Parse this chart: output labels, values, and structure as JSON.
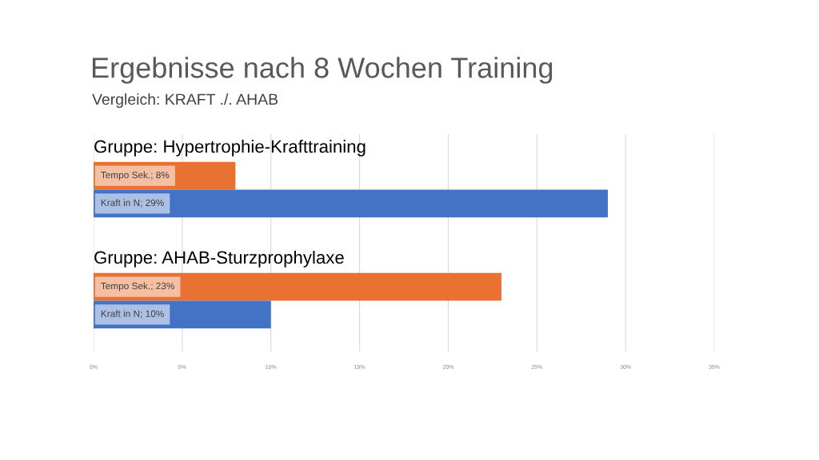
{
  "chart_data": {
    "type": "bar",
    "orientation": "horizontal",
    "title": "Ergebnisse nach 8 Wochen Training",
    "subtitle": "Vergleich: KRAFT ./. AHAB",
    "categories": [
      "Gruppe: Hypertrophie-Krafttraining",
      null,
      null,
      null,
      "Gruppe: AHAB-Sturzprophylaxe",
      null,
      null
    ],
    "values": [
      null,
      8,
      29,
      null,
      null,
      23,
      10
    ],
    "colors": [
      null,
      "#e97132",
      "#4472c4",
      null,
      null,
      "#e97132",
      "#4472c4"
    ],
    "value_labels": [
      null,
      "Tempo Sek.; 8%",
      "Kraft in N; 29%",
      null,
      null,
      "Tempo Sek.; 23%",
      "Kraft in N; 10%"
    ],
    "xlim": [
      0,
      35
    ],
    "xticks": [
      {
        "value": 0,
        "label": "0%"
      },
      {
        "value": 5,
        "label": "5%"
      },
      {
        "value": 10,
        "label": "10%"
      },
      {
        "value": 15,
        "label": "15%"
      },
      {
        "value": 20,
        "label": "20%"
      },
      {
        "value": 25,
        "label": "25%"
      },
      {
        "value": 30,
        "label": "30%"
      },
      {
        "value": 35,
        "label": "35%"
      }
    ],
    "grid": "x"
  }
}
